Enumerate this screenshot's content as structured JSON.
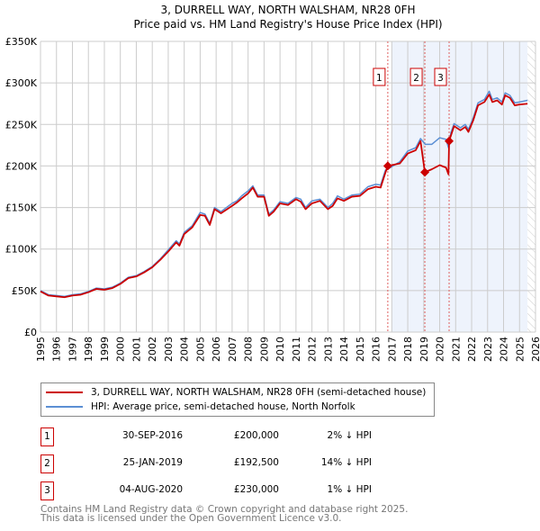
{
  "title_line1": "3, DURRELL WAY, NORTH WALSHAM, NR28 0FH",
  "title_line2": "Price paid vs. HM Land Registry's House Price Index (HPI)",
  "colors": {
    "price": "#cc0000",
    "hpi": "#5b8fd4",
    "shade": "#eef3fc",
    "grid": "#cccccc",
    "marker_border": "#cc0000"
  },
  "chart_data": {
    "type": "line",
    "title": "3, DURRELL WAY, NORTH WALSHAM, NR28 0FH — Price paid vs. HM Land Registry's House Price Index (HPI)",
    "xlim": [
      1995,
      2026
    ],
    "ylim": [
      0,
      350000
    ],
    "x_ticks": [
      "1995",
      "1996",
      "1997",
      "1998",
      "1999",
      "2000",
      "2001",
      "2002",
      "2003",
      "2004",
      "2005",
      "2006",
      "2007",
      "2008",
      "2009",
      "2010",
      "2011",
      "2012",
      "2013",
      "2014",
      "2015",
      "2016",
      "2017",
      "2018",
      "2019",
      "2020",
      "2021",
      "2022",
      "2023",
      "2024",
      "2025",
      "2026"
    ],
    "y_ticks": [
      {
        "v": 0,
        "label": "£0"
      },
      {
        "v": 50000,
        "label": "£50K"
      },
      {
        "v": 100000,
        "label": "£100K"
      },
      {
        "v": 150000,
        "label": "£150K"
      },
      {
        "v": 200000,
        "label": "£200K"
      },
      {
        "v": 250000,
        "label": "£250K"
      },
      {
        "v": 300000,
        "label": "£300K"
      },
      {
        "v": 350000,
        "label": "£350K"
      }
    ],
    "grid": true,
    "shaded_range": [
      2017.0,
      2025.5
    ],
    "hatched_from": 2025.5,
    "series": [
      {
        "name": "HPI: Average price, semi-detached house, North Norfolk",
        "color": "#5b8fd4",
        "x": [
          1995,
          1995.5,
          1996,
          1996.5,
          1997,
          1997.5,
          1998,
          1998.5,
          1999,
          1999.5,
          2000,
          2000.5,
          2001,
          2001.5,
          2002,
          2002.5,
          2003,
          2003.5,
          2003.7,
          2004,
          2004.5,
          2005,
          2005.3,
          2005.6,
          2005.9,
          2006.3,
          2007,
          2007.3,
          2007.6,
          2008,
          2008.3,
          2008.6,
          2009,
          2009.3,
          2009.6,
          2010,
          2010.5,
          2011,
          2011.3,
          2011.6,
          2012,
          2012.5,
          2013,
          2013.3,
          2013.6,
          2014,
          2014.5,
          2015,
          2015.5,
          2016,
          2016.3,
          2016.6,
          2016.9,
          2017.5,
          2018,
          2018.5,
          2018.8,
          2019.1,
          2019.5,
          2020,
          2020.4,
          2020.55,
          2020.7,
          2020.9,
          2021.3,
          2021.6,
          2021.8,
          2022.1,
          2022.4,
          2022.8,
          2023.1,
          2023.3,
          2023.6,
          2023.9,
          2024.1,
          2024.4,
          2024.7,
          2025,
          2025.5
        ],
        "values": [
          50,
          45,
          44,
          43,
          45,
          46,
          49,
          53,
          52,
          54,
          59,
          66,
          68,
          73,
          79,
          88,
          99,
          110,
          106,
          120,
          128,
          144,
          142,
          131,
          150,
          145,
          155,
          158,
          164,
          170,
          176,
          165,
          165,
          142,
          147,
          157,
          155,
          162,
          160,
          150,
          158,
          160,
          150,
          155,
          164,
          160,
          165,
          166,
          175,
          178,
          177,
          195,
          198,
          205,
          218,
          222,
          233,
          226,
          226,
          234,
          232,
          222,
          240,
          251,
          246,
          250,
          244,
          258,
          276,
          280,
          290,
          280,
          282,
          277,
          288,
          285,
          276,
          277,
          279
        ]
      },
      {
        "name": "3, DURRELL WAY, NORTH WALSHAM, NR28 0FH (semi-detached house)",
        "color": "#cc0000",
        "x": [
          1995,
          1995.5,
          1996,
          1996.5,
          1997,
          1997.5,
          1998,
          1998.5,
          1999,
          1999.5,
          2000,
          2000.5,
          2001,
          2001.5,
          2002,
          2002.5,
          2003,
          2003.5,
          2003.7,
          2004,
          2004.5,
          2005,
          2005.3,
          2005.6,
          2005.9,
          2006.3,
          2007,
          2007.3,
          2007.6,
          2008,
          2008.3,
          2008.6,
          2009,
          2009.3,
          2009.6,
          2010,
          2010.5,
          2011,
          2011.3,
          2011.6,
          2012,
          2012.5,
          2013,
          2013.3,
          2013.6,
          2014,
          2014.5,
          2015,
          2015.5,
          2016,
          2016.3,
          2016.6,
          2016.75,
          2017.5,
          2018,
          2018.5,
          2018.8,
          2019.07,
          2019.5,
          2020,
          2020.4,
          2020.55,
          2020.59,
          2020.9,
          2021.3,
          2021.6,
          2021.8,
          2022.1,
          2022.4,
          2022.8,
          2023.1,
          2023.3,
          2023.6,
          2023.9,
          2024.1,
          2024.4,
          2024.7,
          2025,
          2025.5
        ],
        "values": [
          49,
          44,
          43,
          42,
          44,
          45,
          48,
          52,
          51,
          53,
          58,
          65,
          67,
          72,
          78,
          87,
          97,
          108,
          104,
          118,
          126,
          141,
          140,
          129,
          148,
          143,
          152,
          156,
          161,
          167,
          174,
          163,
          163,
          140,
          145,
          155,
          153,
          160,
          157,
          148,
          155,
          158,
          148,
          152,
          161,
          158,
          163,
          164,
          172,
          175,
          174,
          192,
          200,
          203,
          215,
          219,
          230,
          192.5,
          196,
          201,
          198,
          190,
          230,
          248,
          243,
          247,
          241,
          255,
          273,
          277,
          286,
          277,
          279,
          274,
          285,
          282,
          273,
          274,
          275
        ]
      }
    ],
    "sales": [
      {
        "id": "1",
        "x": 2016.75,
        "value": 200
      },
      {
        "id": "2",
        "x": 2019.07,
        "value": 192.5
      },
      {
        "id": "3",
        "x": 2020.59,
        "value": 230
      }
    ],
    "value_unit": "£K"
  },
  "legend": {
    "price_label": "3, DURRELL WAY, NORTH WALSHAM, NR28 0FH (semi-detached house)",
    "hpi_label": "HPI: Average price, semi-detached house, North Norfolk"
  },
  "transactions": [
    {
      "num": "1",
      "date": "30-SEP-2016",
      "price": "£200,000",
      "hpi": "2% ↓ HPI"
    },
    {
      "num": "2",
      "date": "25-JAN-2019",
      "price": "£192,500",
      "hpi": "14% ↓ HPI"
    },
    {
      "num": "3",
      "date": "04-AUG-2020",
      "price": "£230,000",
      "hpi": "1% ↓ HPI"
    }
  ],
  "footer": {
    "line1": "Contains HM Land Registry data © Crown copyright and database right 2025.",
    "line2": "This data is licensed under the Open Government Licence v3.0."
  }
}
